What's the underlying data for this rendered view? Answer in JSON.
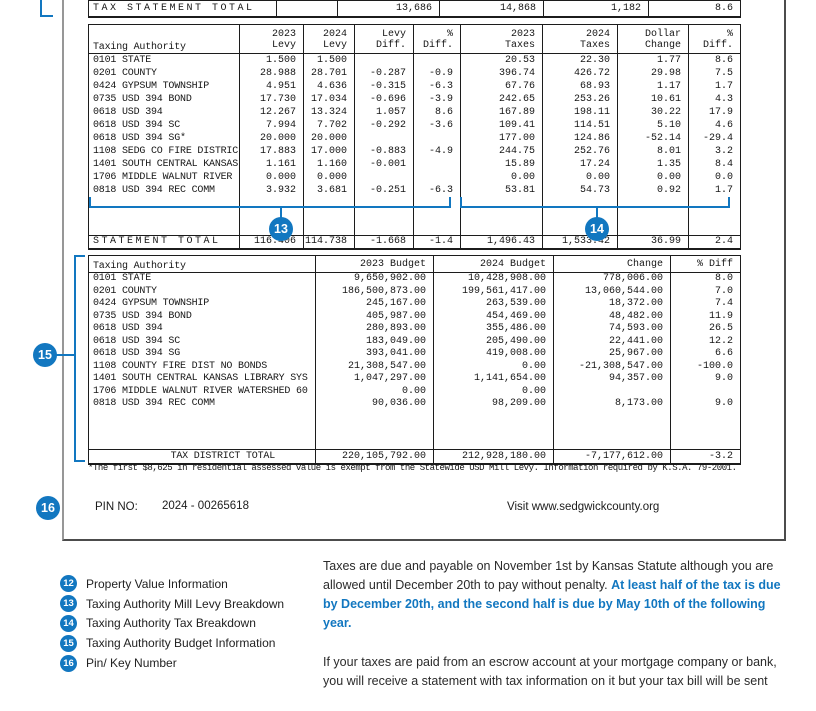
{
  "accent_blue": "#1277c0",
  "doc": {
    "tax_statement_total": {
      "label": "TAX STATEMENT TOTAL",
      "values": [
        "",
        "13,686",
        "14,868",
        "1,182",
        "8.6"
      ]
    },
    "levy_table": {
      "header": [
        "Taxing Authority",
        "2023\nLevy",
        "2024\nLevy",
        "Levy\nDiff.",
        "%\nDiff.",
        "2023\nTaxes",
        "2024\nTaxes",
        "Dollar\nChange",
        "%\nDiff."
      ],
      "rows": [
        [
          "0101 STATE",
          "1.500",
          "1.500",
          "",
          "",
          "20.53",
          "22.30",
          "1.77",
          "8.6"
        ],
        [
          "0201 COUNTY",
          "28.988",
          "28.701",
          "-0.287",
          "-0.9",
          "396.74",
          "426.72",
          "29.98",
          "7.5"
        ],
        [
          "0424 GYPSUM TOWNSHIP",
          "4.951",
          "4.636",
          "-0.315",
          "-6.3",
          "67.76",
          "68.93",
          "1.17",
          "1.7"
        ],
        [
          "0735 USD 394 BOND",
          "17.730",
          "17.034",
          "-0.696",
          "-3.9",
          "242.65",
          "253.26",
          "10.61",
          "4.3"
        ],
        [
          "0618 USD 394",
          "12.267",
          "13.324",
          "1.057",
          "8.6",
          "167.89",
          "198.11",
          "30.22",
          "17.9"
        ],
        [
          "0618 USD 394 SC",
          "7.994",
          "7.702",
          "-0.292",
          "-3.6",
          "109.41",
          "114.51",
          "5.10",
          "4.6"
        ],
        [
          "0618 USD 394 SG*",
          "20.000",
          "20.000",
          "",
          "",
          "177.00",
          "124.86",
          "-52.14",
          "-29.4"
        ],
        [
          "1108 SEDG CO FIRE DISTRIC",
          "17.883",
          "17.000",
          "-0.883",
          "-4.9",
          "244.75",
          "252.76",
          "8.01",
          "3.2"
        ],
        [
          "1401 SOUTH CENTRAL KANSAS",
          "1.161",
          "1.160",
          "-0.001",
          "",
          "15.89",
          "17.24",
          "1.35",
          "8.4"
        ],
        [
          "1706 MIDDLE WALNUT RIVER",
          "0.000",
          "0.000",
          "",
          "",
          "0.00",
          "0.00",
          "0.00",
          "0.0"
        ],
        [
          "0818 USD 394 REC COMM",
          "3.932",
          "3.681",
          "-0.251",
          "-6.3",
          "53.81",
          "54.73",
          "0.92",
          "1.7"
        ]
      ],
      "total": [
        "STATEMENT TOTAL",
        "116.406",
        "114.738",
        "-1.668",
        "-1.4",
        "1,496.43",
        "1,533.42",
        "36.99",
        "2.4"
      ]
    },
    "budget_table": {
      "header": [
        "Taxing Authority",
        "2023 Budget",
        "2024 Budget",
        "Change",
        "% Diff"
      ],
      "rows": [
        [
          "0101 STATE",
          "9,650,902.00",
          "10,428,908.00",
          "778,006.00",
          "8.0"
        ],
        [
          "0201 COUNTY",
          "186,500,873.00",
          "199,561,417.00",
          "13,060,544.00",
          "7.0"
        ],
        [
          "0424 GYPSUM TOWNSHIP",
          "245,167.00",
          "263,539.00",
          "18,372.00",
          "7.4"
        ],
        [
          "0735 USD 394 BOND",
          "405,987.00",
          "454,469.00",
          "48,482.00",
          "11.9"
        ],
        [
          "0618 USD 394",
          "280,893.00",
          "355,486.00",
          "74,593.00",
          "26.5"
        ],
        [
          "0618 USD 394 SC",
          "183,049.00",
          "205,490.00",
          "22,441.00",
          "12.2"
        ],
        [
          "0618 USD 394 SG",
          "393,041.00",
          "419,008.00",
          "25,967.00",
          "6.6"
        ],
        [
          "1108 COUNTY FIRE DIST NO BONDS",
          "21,308,547.00",
          "0.00",
          "-21,308,547.00",
          "-100.0"
        ],
        [
          "1401 SOUTH CENTRAL KANSAS LIBRARY SYS",
          "1,047,297.00",
          "1,141,654.00",
          "94,357.00",
          "9.0"
        ],
        [
          "1706 MIDDLE WALNUT RIVER WATERSHED 60",
          "0.00",
          "0.00",
          "",
          ""
        ],
        [
          "0818 USD 394 REC COMM",
          "90,036.00",
          "98,209.00",
          "8,173.00",
          "9.0"
        ]
      ],
      "total": [
        "TAX DISTRICT TOTAL",
        "220,105,792.00",
        "212,928,180.00",
        "-7,177,612.00",
        "-3.2"
      ]
    },
    "footnote": "*The first $8,625 in residential assessed value is exempt from the Statewide USD Mill Levy. Information required by K.S.A. 79-2001.",
    "pin": {
      "label": "PIN NO:",
      "value": "2024 - 00265618"
    },
    "visit": "Visit www.sedgwickcounty.org"
  },
  "callouts": {
    "c13": "13",
    "c14": "14",
    "c15": "15",
    "c16": "16"
  },
  "legend": {
    "items": [
      {
        "num": "12",
        "label": "Property Value Information"
      },
      {
        "num": "13",
        "label": "Taxing Authority Mill Levy Breakdown"
      },
      {
        "num": "14",
        "label": "Taxing Authority Tax Breakdown"
      },
      {
        "num": "15",
        "label": "Taxing Authority Budget Information"
      },
      {
        "num": "16",
        "label": "Pin/ Key Number"
      }
    ]
  },
  "paragraphs": {
    "p1_black": "Taxes are due and payable on November 1st by Kansas Statute although you are allowed until December 20th to pay without penalty. ",
    "p1_blue": "At least half of the tax is due by December 20th, and the second half is due by May 10th of the following year.",
    "p2": "If your taxes are paid from an escrow account at your mortgage company or bank, you will receive a statement with tax information on it but your tax bill will be sent"
  }
}
